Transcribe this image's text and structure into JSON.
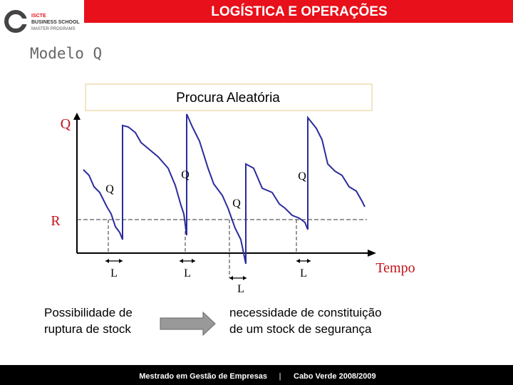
{
  "header": {
    "title": "LOGÍSTICA E OPERAÇÕES",
    "logo": [
      "ISCTE",
      "BUSINESS SCHOOL",
      "MASTER PROGRAMS"
    ]
  },
  "slide": {
    "title": "Modelo Q"
  },
  "diagram": {
    "box_title": "Procura Aleatória",
    "y_axis_label": "Q",
    "reorder_label": "R",
    "x_axis_label": "Tempo",
    "q_labels": [
      "Q",
      "Q",
      "Q",
      "Q"
    ],
    "l_labels": [
      "L",
      "L",
      "L",
      "L"
    ]
  },
  "note": {
    "left": [
      "Possibilidade de",
      "ruptura de stock"
    ],
    "right": [
      "necessidade de constituição",
      "de um stock de segurança"
    ]
  },
  "footer": {
    "program": "Mestrado em Gestão de Empresas",
    "separator": "|",
    "place": "Cabo Verde 2008/2009"
  }
}
